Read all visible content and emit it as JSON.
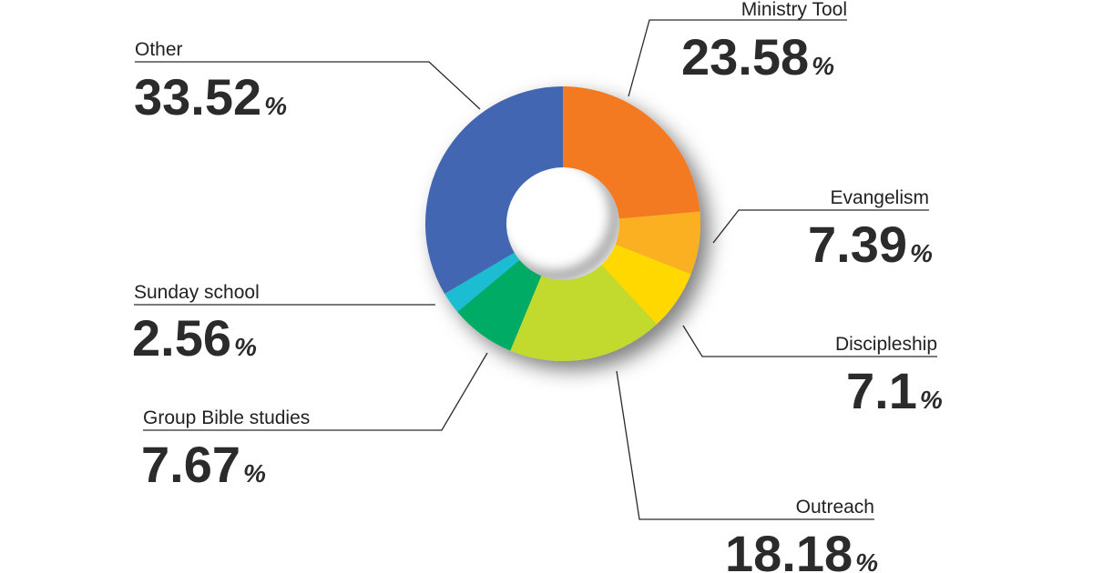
{
  "chart_data": {
    "type": "pie",
    "donut": true,
    "start_angle_deg": 0,
    "direction": "clockwise",
    "percent_symbol": "%",
    "categories": [
      "Ministry Tool",
      "Evangelism",
      "Discipleship",
      "Outreach",
      "Group Bible studies",
      "Sunday school",
      "Other"
    ],
    "values": [
      23.58,
      7.39,
      7.1,
      18.18,
      7.67,
      2.56,
      33.52
    ],
    "value_labels": [
      "23.58",
      "7.39",
      "7.1",
      "18.18",
      "7.67",
      "2.56",
      "33.52"
    ],
    "colors": [
      "#F47A24",
      "#FBB021",
      "#FFD800",
      "#C2D92F",
      "#00AB66",
      "#1CBCD2",
      "#4366B1"
    ],
    "title": "",
    "legend": "none"
  }
}
